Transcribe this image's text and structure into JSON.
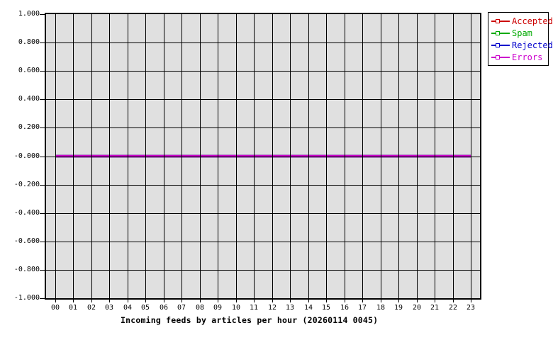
{
  "chart_data": {
    "type": "line",
    "title": "Incoming feeds by articles per hour (20260114 0045)",
    "xlabel": "",
    "ylabel": "",
    "categories": [
      "00",
      "01",
      "02",
      "03",
      "04",
      "05",
      "06",
      "07",
      "08",
      "09",
      "10",
      "11",
      "12",
      "13",
      "14",
      "15",
      "16",
      "17",
      "18",
      "19",
      "20",
      "21",
      "22",
      "23"
    ],
    "series": [
      {
        "name": "Accepted",
        "color": "#cc0000",
        "values": [
          0,
          0,
          0,
          0,
          0,
          0,
          0,
          0,
          0,
          0,
          0,
          0,
          0,
          0,
          0,
          0,
          0,
          0,
          0,
          0,
          0,
          0,
          0,
          0
        ]
      },
      {
        "name": "Spam",
        "color": "#00aa00",
        "values": [
          0,
          0,
          0,
          0,
          0,
          0,
          0,
          0,
          0,
          0,
          0,
          0,
          0,
          0,
          0,
          0,
          0,
          0,
          0,
          0,
          0,
          0,
          0,
          0
        ]
      },
      {
        "name": "Rejected",
        "color": "#0000cc",
        "values": [
          0,
          0,
          0,
          0,
          0,
          0,
          0,
          0,
          0,
          0,
          0,
          0,
          0,
          0,
          0,
          0,
          0,
          0,
          0,
          0,
          0,
          0,
          0,
          0
        ]
      },
      {
        "name": "Errors",
        "color": "#cc00cc",
        "values": [
          0,
          0,
          0,
          0,
          0,
          0,
          0,
          0,
          0,
          0,
          0,
          0,
          0,
          0,
          0,
          0,
          0,
          0,
          0,
          0,
          0,
          0,
          0,
          0
        ]
      }
    ],
    "ylim": [
      -1.0,
      1.0
    ],
    "ytick_step": 0.2,
    "ytick_labels": [
      "1.000",
      "0.800",
      "0.600",
      "0.400",
      "0.200",
      "-0.000",
      "-0.200",
      "-0.400",
      "-0.600",
      "-0.800",
      "-1.000"
    ],
    "grid": true,
    "plot_bg": "#e0e0e0",
    "grid_color": "#000000",
    "legend_position": "outside-top-right"
  },
  "legend": {
    "entries": [
      {
        "label": "Accepted",
        "color": "#cc0000"
      },
      {
        "label": "Spam",
        "color": "#00aa00"
      },
      {
        "label": "Rejected",
        "color": "#0000cc"
      },
      {
        "label": "Errors",
        "color": "#cc00cc"
      }
    ]
  }
}
